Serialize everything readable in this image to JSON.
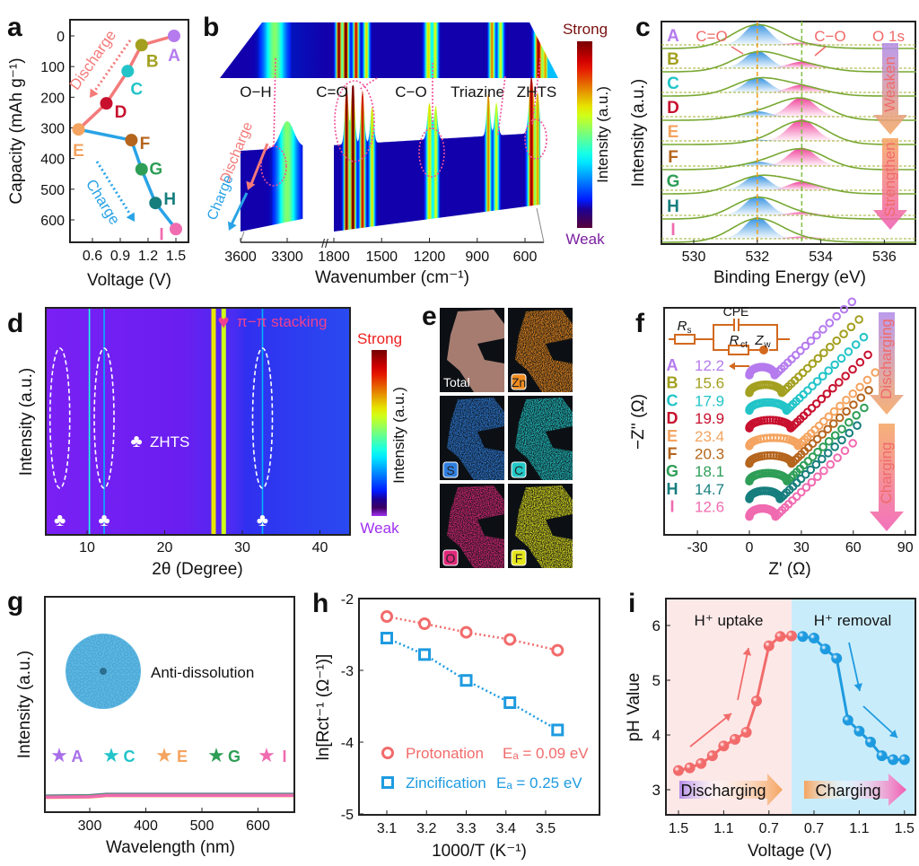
{
  "chart_data": [
    {
      "panel": "a",
      "type": "line",
      "xlabel": "Voltage (V)",
      "ylabel": "Capacity (mAh g⁻¹)",
      "xticks": [
        "0.6",
        "0.9",
        "1.2",
        "1.5"
      ],
      "xlim": [
        0.4,
        1.65
      ],
      "yticks": [
        "0",
        "100",
        "200",
        "300",
        "400",
        "500",
        "600"
      ],
      "ylim": [
        -55,
        675
      ],
      "y_inverted": true,
      "points": [
        {
          "label": "A",
          "x": 1.48,
          "y": 0,
          "color": "#b57bee"
        },
        {
          "label": "B",
          "x": 1.13,
          "y": 30,
          "color": "#a3a020"
        },
        {
          "label": "C",
          "x": 0.98,
          "y": 115,
          "color": "#22c4c8"
        },
        {
          "label": "D",
          "x": 0.75,
          "y": 220,
          "color": "#c8102e"
        },
        {
          "label": "E",
          "x": 0.45,
          "y": 305,
          "color": "#f4a460"
        },
        {
          "label": "F",
          "x": 1.02,
          "y": 340,
          "color": "#b5651d"
        },
        {
          "label": "G",
          "x": 1.13,
          "y": 435,
          "color": "#2e9e57"
        },
        {
          "label": "H",
          "x": 1.28,
          "y": 545,
          "color": "#177e7e"
        },
        {
          "label": "I",
          "x": 1.5,
          "y": 630,
          "color": "#f06bb0"
        }
      ],
      "series": [
        {
          "name": "Discharge",
          "from": 0,
          "to": 4,
          "color": "#f47a7a"
        },
        {
          "name": "Charge",
          "from": 4,
          "to": 8,
          "color": "#29a3e6"
        }
      ]
    },
    {
      "panel": "b",
      "type": "heatmap",
      "xlabel": "Wavenumber (cm⁻¹)",
      "xticks": [
        "3600",
        "3300",
        "1800",
        "1500",
        "1200",
        "900",
        "600"
      ],
      "x_segments": [
        [
          3600,
          3200
        ],
        [
          1800,
          500
        ]
      ],
      "annotations": [
        "O−H",
        "C=O",
        "C−O",
        "Triazine",
        "ZHTS"
      ],
      "direction_labels": {
        "discharge": "Discharge",
        "charge": "Charge"
      },
      "colorbar": {
        "label": "Intensity (a.u.)",
        "max": "Strong",
        "min": "Weak"
      },
      "peaks": [
        {
          "wn": 3300,
          "amp": 0.4,
          "width": 60
        },
        {
          "wn": 1720,
          "amp": 0.9,
          "width": 15
        },
        {
          "wn": 1680,
          "amp": 1.0,
          "width": 15
        },
        {
          "wn": 1620,
          "amp": 0.8,
          "width": 15
        },
        {
          "wn": 1560,
          "amp": 0.55,
          "width": 15
        },
        {
          "wn": 1200,
          "amp": 0.55,
          "width": 18
        },
        {
          "wn": 1160,
          "amp": 0.5,
          "width": 15
        },
        {
          "wn": 830,
          "amp": 0.65,
          "width": 15
        },
        {
          "wn": 780,
          "amp": 0.5,
          "width": 15
        },
        {
          "wn": 560,
          "amp": 0.85,
          "width": 20
        },
        {
          "wn": 520,
          "amp": 0.6,
          "width": 15
        }
      ]
    },
    {
      "panel": "c",
      "type": "area",
      "xlabel": "Binding Energy (eV)",
      "ylabel": "Intensity (a.u.)",
      "xticks": [
        "530",
        "532",
        "534",
        "536"
      ],
      "xlim": [
        529,
        537
      ],
      "peak_positions": {
        "c_eq_o": 532.0,
        "c_o": 533.4
      },
      "annotations": {
        "c_eq_o": "C=O",
        "c_o": "C−O",
        "region": "O 1s",
        "weaken": "Weaken",
        "strengthen": "Strengthen"
      },
      "series": [
        {
          "name": "A",
          "color": "#b57bee",
          "c_eq_o": 1.0,
          "c_o": 0.1
        },
        {
          "name": "B",
          "color": "#a3a020",
          "c_eq_o": 0.8,
          "c_o": 0.3
        },
        {
          "name": "C",
          "color": "#22c4c8",
          "c_eq_o": 0.7,
          "c_o": 0.35
        },
        {
          "name": "D",
          "color": "#c8102e",
          "c_eq_o": 0.25,
          "c_o": 0.9
        },
        {
          "name": "E",
          "color": "#f4a460",
          "c_eq_o": 0.05,
          "c_o": 1.0
        },
        {
          "name": "F",
          "color": "#b5651d",
          "c_eq_o": 0.2,
          "c_o": 0.85
        },
        {
          "name": "G",
          "color": "#2e9e57",
          "c_eq_o": 0.7,
          "c_o": 0.4
        },
        {
          "name": "H",
          "color": "#177e7e",
          "c_eq_o": 0.9,
          "c_o": 0.15
        },
        {
          "name": "I",
          "color": "#f06bb0",
          "c_eq_o": 1.0,
          "c_o": 0.1
        }
      ]
    },
    {
      "panel": "d",
      "type": "heatmap",
      "xlabel": "2θ (Degree)",
      "ylabel": "Intensity (a.u.)",
      "xticks": [
        "10",
        "20",
        "30",
        "40"
      ],
      "xlim": [
        5,
        44
      ],
      "lines": [
        {
          "x": 10.3,
          "intensity": 0.35
        },
        {
          "x": 12.2,
          "intensity": 0.25
        },
        {
          "x": 26.3,
          "intensity": 0.6
        },
        {
          "x": 27.6,
          "intensity": 0.55
        },
        {
          "x": 32.6,
          "intensity": 0.25
        }
      ],
      "zhts_peaks": [
        6.5,
        12.2,
        32.6
      ],
      "stacking_peak": 27.6,
      "annotations": {
        "zhts": "ZHTS",
        "stacking": "π−π stacking"
      },
      "colorbar": {
        "label": "Intensity (a.u.)",
        "max": "Strong",
        "min": "Weak"
      }
    },
    {
      "panel": "e",
      "type": "image-grid",
      "tiles": [
        {
          "label": "Total",
          "color": "#d9a090"
        },
        {
          "label": "Zn",
          "color": "#f08c1e"
        },
        {
          "label": "S",
          "color": "#2f7fe0"
        },
        {
          "label": "C",
          "color": "#22c8c8"
        },
        {
          "label": "O",
          "color": "#e0287a"
        },
        {
          "label": "F",
          "color": "#e6e61e"
        }
      ]
    },
    {
      "panel": "f",
      "type": "scatter",
      "xlabel": "Z' (Ω)",
      "ylabel": "−Z'' (Ω)",
      "xticks": [
        "-30",
        "0",
        "30",
        "60",
        "90"
      ],
      "xlim": [
        -50,
        95
      ],
      "circuit": {
        "rs": "R",
        "rs_sub": "s",
        "cpe": "CPE",
        "rct": "R",
        "rct_sub": "ct",
        "zw": "Z",
        "zw_sub": "w",
        "color": "#d2691e"
      },
      "direction_labels": {
        "discharging": "Discharging",
        "charging": "Charging"
      },
      "series": [
        {
          "name": "A",
          "rct": "12.2",
          "color": "#b57bee"
        },
        {
          "name": "B",
          "rct": "15.6",
          "color": "#a3a020"
        },
        {
          "name": "C",
          "rct": "17.9",
          "color": "#22c4c8"
        },
        {
          "name": "D",
          "rct": "19.9",
          "color": "#c8102e"
        },
        {
          "name": "E",
          "rct": "23.4",
          "color": "#f4a460"
        },
        {
          "name": "F",
          "rct": "20.3",
          "color": "#b5651d"
        },
        {
          "name": "G",
          "rct": "18.1",
          "color": "#2e9e57"
        },
        {
          "name": "H",
          "rct": "14.7",
          "color": "#177e7e"
        },
        {
          "name": "I",
          "rct": "12.6",
          "color": "#f06bb0"
        }
      ]
    },
    {
      "panel": "g",
      "type": "line",
      "xlabel": "Wavelength (nm)",
      "ylabel": "Intensity (a.u.)",
      "xticks": [
        "300",
        "400",
        "500",
        "600"
      ],
      "xlim": [
        220,
        660
      ],
      "annotation": "Anti-dissolution",
      "series": [
        {
          "name": "A",
          "color": "#a86ee8",
          "y": 0.075
        },
        {
          "name": "C",
          "color": "#22c4c8",
          "y": 0.065
        },
        {
          "name": "E",
          "color": "#f4a460",
          "y": 0.055
        },
        {
          "name": "G",
          "color": "#2e9e57",
          "y": 0.07
        },
        {
          "name": "I",
          "color": "#f06bb0",
          "y": 0.06
        }
      ]
    },
    {
      "panel": "h",
      "type": "scatter",
      "xlabel": "1000/T (K⁻¹)",
      "ylabel": "ln[Rct⁻¹ (Ω⁻¹)]",
      "xticks": [
        "3.1",
        "3.2",
        "3.3",
        "3.4",
        "3.5"
      ],
      "xlim": [
        3.03,
        3.58
      ],
      "yticks": [
        "-2",
        "-3",
        "-4",
        "-5"
      ],
      "ylim": [
        -5,
        -2
      ],
      "series": [
        {
          "name": "Protonation",
          "ea_text": "Eₐ = 0.09 eV",
          "color": "#f26b6b",
          "marker": "circle",
          "x": [
            3.1,
            3.195,
            3.3,
            3.41,
            3.53
          ],
          "y": [
            -2.25,
            -2.35,
            -2.47,
            -2.57,
            -2.72
          ]
        },
        {
          "name": "Zincification",
          "ea_text": "Eₐ = 0.25 eV",
          "color": "#1e9be0",
          "marker": "square",
          "x": [
            3.1,
            3.195,
            3.3,
            3.41,
            3.53
          ],
          "y": [
            -2.55,
            -2.78,
            -3.14,
            -3.45,
            -3.83
          ]
        }
      ]
    },
    {
      "panel": "i",
      "type": "line",
      "xlabel": "Voltage (V)",
      "ylabel": "pH Value",
      "xticks_discharge": [
        "1.5",
        "1.1",
        "0.7"
      ],
      "xticks_charge": [
        "0.7",
        "1.1",
        "1.5"
      ],
      "yticks": [
        "3",
        "4",
        "5",
        "6"
      ],
      "ylim": [
        2.5,
        6.5
      ],
      "regions": {
        "uptake": "H⁺ uptake",
        "removal": "H⁺ removal",
        "discharging": "Discharging",
        "charging": "Charging"
      },
      "colors": {
        "uptake_bg": "#fde8e8",
        "removal_bg": "#c9ecfa"
      },
      "series": [
        {
          "name": "Discharging",
          "color": "#f26b6b",
          "x": [
            1.5,
            1.4,
            1.3,
            1.2,
            1.1,
            1.0,
            0.9,
            0.81,
            0.7,
            0.6,
            0.5
          ],
          "y": [
            3.35,
            3.4,
            3.48,
            3.62,
            3.8,
            3.92,
            4.05,
            4.62,
            5.63,
            5.8,
            5.81
          ]
        },
        {
          "name": "Charging",
          "color": "#1e9be0",
          "x": [
            0.6,
            0.7,
            0.8,
            0.9,
            1.0,
            1.1,
            1.2,
            1.3,
            1.4,
            1.5
          ],
          "y": [
            5.8,
            5.77,
            5.57,
            5.4,
            4.27,
            4.07,
            3.87,
            3.62,
            3.55,
            3.55
          ]
        }
      ]
    }
  ]
}
